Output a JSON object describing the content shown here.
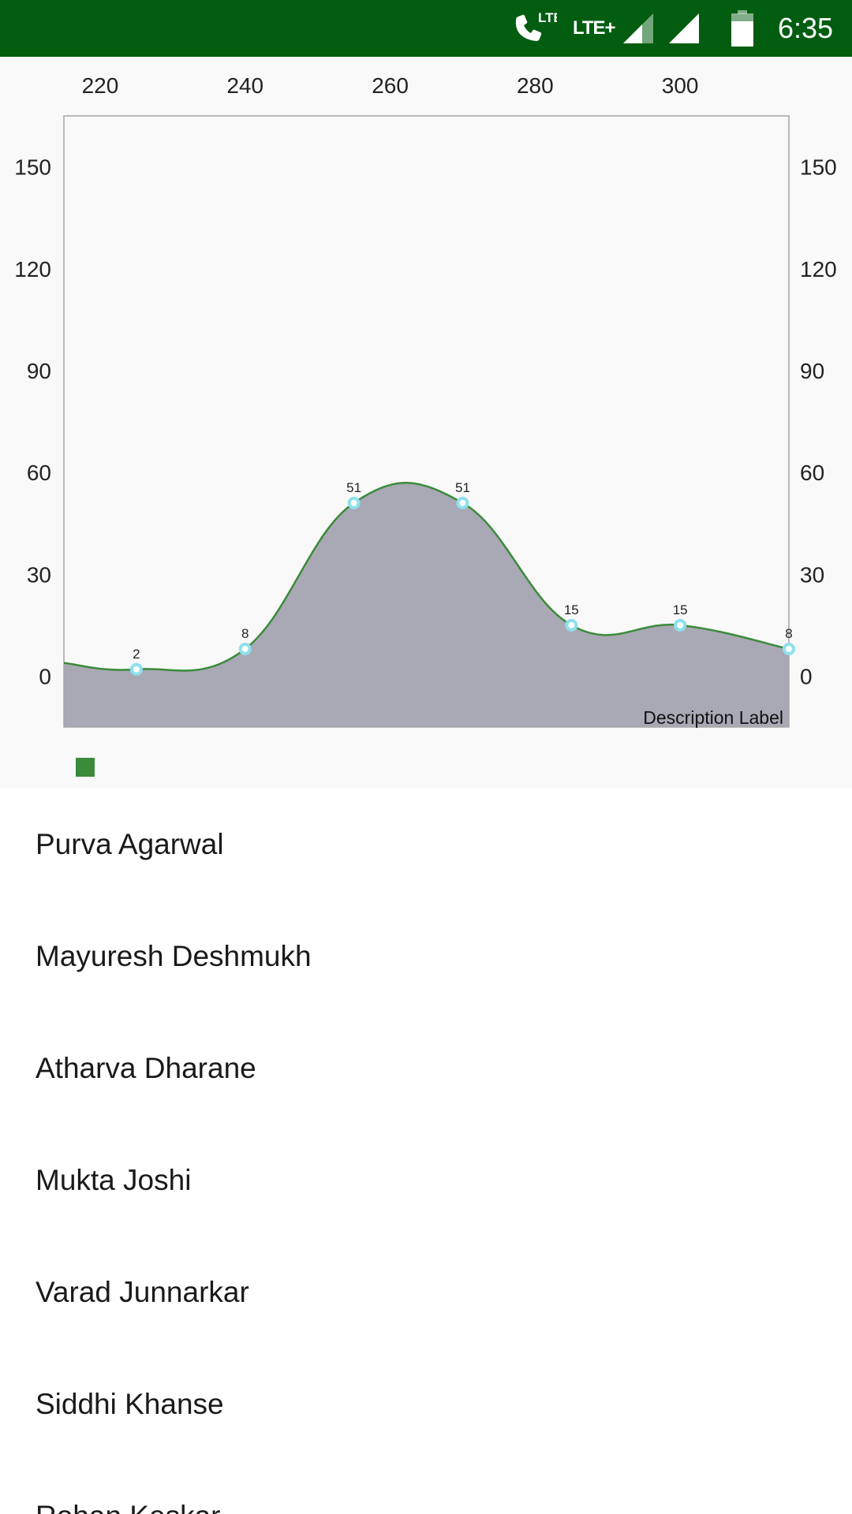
{
  "status_bar": {
    "background": "#025d10",
    "call_indicator": "LTE",
    "network_type": "LTE+",
    "time": "6:35",
    "icons": [
      "phone-lte-icon",
      "signal-icon",
      "signal-icon",
      "battery-icon"
    ]
  },
  "chart_data": {
    "type": "area",
    "x": [
      225,
      240,
      255,
      270,
      285,
      300,
      315
    ],
    "series": [
      {
        "values": [
          2,
          8,
          51,
          51,
          15,
          15,
          8
        ]
      }
    ],
    "x_ticks": [
      "220",
      "240",
      "260",
      "280",
      "300"
    ],
    "y_ticks": [
      "0",
      "30",
      "60",
      "90",
      "120",
      "150"
    ],
    "xlim": [
      215,
      315
    ],
    "ylim": [
      -15,
      165
    ],
    "x_axis_position": "top",
    "y_axis_sides": "left-right",
    "curve": "smooth",
    "line_color": "#3a8b3a",
    "fill_color": "#a9a9b5",
    "point_color": "#8ee0ec",
    "legend_color": "#3a8b3a",
    "legend_placement": "bottom-left",
    "description": "Description Label",
    "grid": false
  },
  "list": {
    "items": [
      "Purva Agarwal",
      "Mayuresh Deshmukh",
      "Atharva Dharane",
      "Mukta Joshi",
      "Varad Junnarkar",
      "Siddhi Khanse",
      "Rohan Keskar"
    ]
  }
}
